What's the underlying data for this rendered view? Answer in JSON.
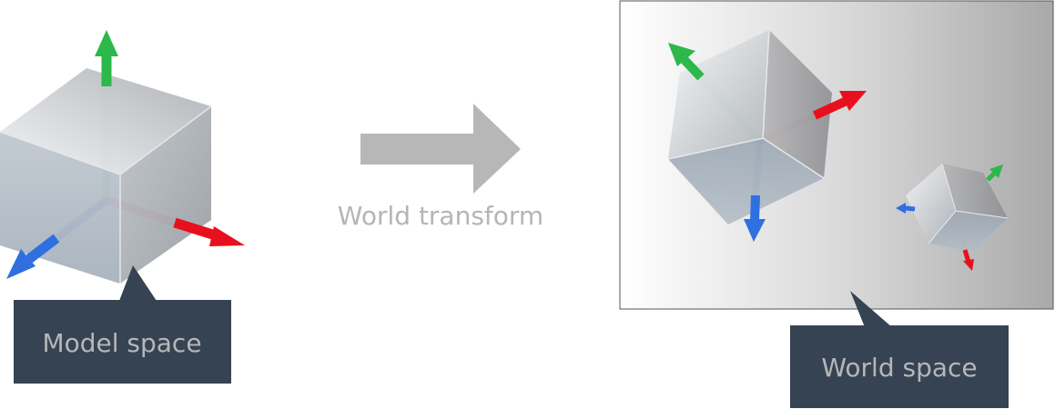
{
  "diagram": {
    "transform_label": "World transform",
    "model_callout_label": "Model space",
    "world_callout_label": "World space"
  },
  "colors": {
    "x_axis": "#e8101e",
    "y_axis": "#2cb84a",
    "z_axis": "#2f6fe0",
    "callout_bg": "#364352",
    "callout_text": "#b5b7ba",
    "arrow_fill": "#b7b7b7",
    "arrow_text": "#b5b5b5"
  },
  "icons": {
    "model_cube": "cube-icon",
    "world_cube_large": "cube-icon",
    "world_cube_small": "cube-icon",
    "transform_arrow": "right-arrow-icon"
  }
}
